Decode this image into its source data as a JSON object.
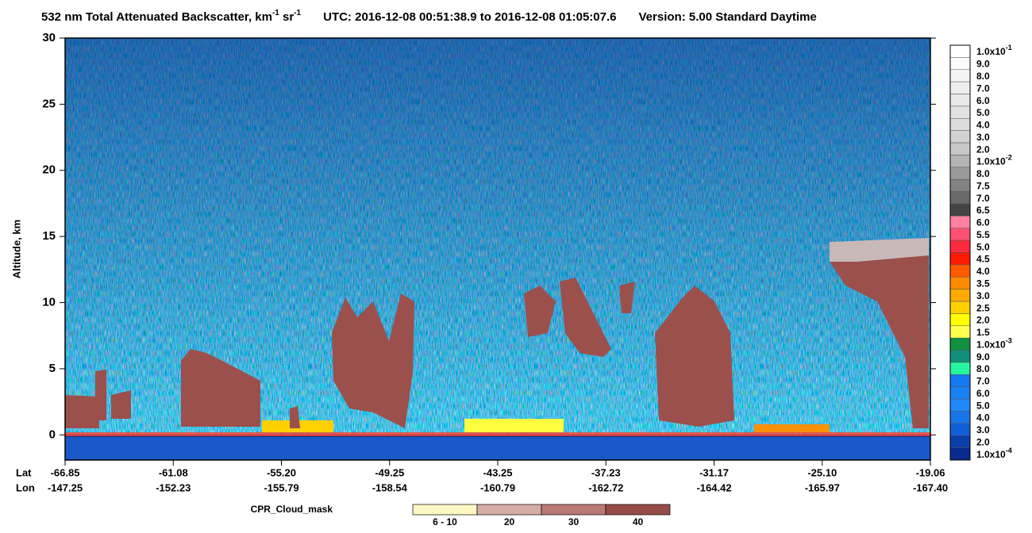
{
  "chart_data": {
    "type": "heatmap",
    "title_parts": [
      "532 nm Total Attenuated Backscatter, km",
      "-1",
      " sr",
      "-1",
      "UTC:  2016-12-08 00:51:38.9  to  2016-12-08 01:05:07.6",
      "Version: 5.00  Standard  Daytime"
    ],
    "ylabel": "Altitude, km",
    "ylim": [
      -1.9,
      30
    ],
    "yticks": [
      0,
      5,
      10,
      15,
      20,
      25,
      30
    ],
    "x_row_labels": [
      "Lat",
      "Lon"
    ],
    "lat": [
      "-66.85",
      "-61.08",
      "-55.20",
      "-49.25",
      "-43.25",
      "-37.23",
      "-31.17",
      "-25.10",
      "-19.06"
    ],
    "lon": [
      "-147.25",
      "-152.23",
      "-155.79",
      "-158.54",
      "-160.79",
      "-162.72",
      "-164.42",
      "-165.97",
      "-167.40"
    ],
    "colorbar": [
      {
        "label": "1.0x10",
        "exp": "-1",
        "color": "#ffffff"
      },
      {
        "label": "9.0",
        "color": "#fafafa"
      },
      {
        "label": "8.0",
        "color": "#f4f4f4"
      },
      {
        "label": "7.0",
        "color": "#eeeeee"
      },
      {
        "label": "6.0",
        "color": "#e8e8e8"
      },
      {
        "label": "5.0",
        "color": "#e2e2e2"
      },
      {
        "label": "4.0",
        "color": "#dcdcdc"
      },
      {
        "label": "3.0",
        "color": "#d2d2d2"
      },
      {
        "label": "2.0",
        "color": "#c8c8c8"
      },
      {
        "label": "1.0x10",
        "exp": "-2",
        "color": "#b4b4b4"
      },
      {
        "label": "8.0",
        "color": "#9a9a9a"
      },
      {
        "label": "7.5",
        "color": "#828282"
      },
      {
        "label": "7.0",
        "color": "#6a6a6a"
      },
      {
        "label": "6.5",
        "color": "#454545"
      },
      {
        "label": "6.0",
        "color": "#ff80a0"
      },
      {
        "label": "5.5",
        "color": "#ff5070"
      },
      {
        "label": "5.0",
        "color": "#ff2a40"
      },
      {
        "label": "4.5",
        "color": "#ff1a00"
      },
      {
        "label": "4.0",
        "color": "#ff5a00"
      },
      {
        "label": "3.5",
        "color": "#ff8c00"
      },
      {
        "label": "3.0",
        "color": "#ffaa00"
      },
      {
        "label": "2.5",
        "color": "#ffd000"
      },
      {
        "label": "2.0",
        "color": "#ffff00"
      },
      {
        "label": "1.5",
        "color": "#ffff50"
      },
      {
        "label": "1.0x10",
        "exp": "-3",
        "color": "#109040"
      },
      {
        "label": "9.0",
        "color": "#10907a"
      },
      {
        "label": "8.0",
        "color": "#28f5a0"
      },
      {
        "label": "7.0",
        "color": "#1478f0"
      },
      {
        "label": "6.0",
        "color": "#1a80f5"
      },
      {
        "label": "5.0",
        "color": "#1e88f8"
      },
      {
        "label": "4.0",
        "color": "#1a74ea"
      },
      {
        "label": "3.0",
        "color": "#1260d8"
      },
      {
        "label": "2.0",
        "color": "#0a3ea8"
      },
      {
        "label": "1.0x10",
        "exp": "-4",
        "color": "#0a2a90"
      }
    ],
    "cloud_mask": {
      "title": "CPR_Cloud_mask",
      "labels": [
        "6 - 10",
        "20",
        "30",
        "40"
      ],
      "colors": [
        "#fdf7c4",
        "#d6aca8",
        "#b97a76",
        "#984c48"
      ]
    }
  }
}
